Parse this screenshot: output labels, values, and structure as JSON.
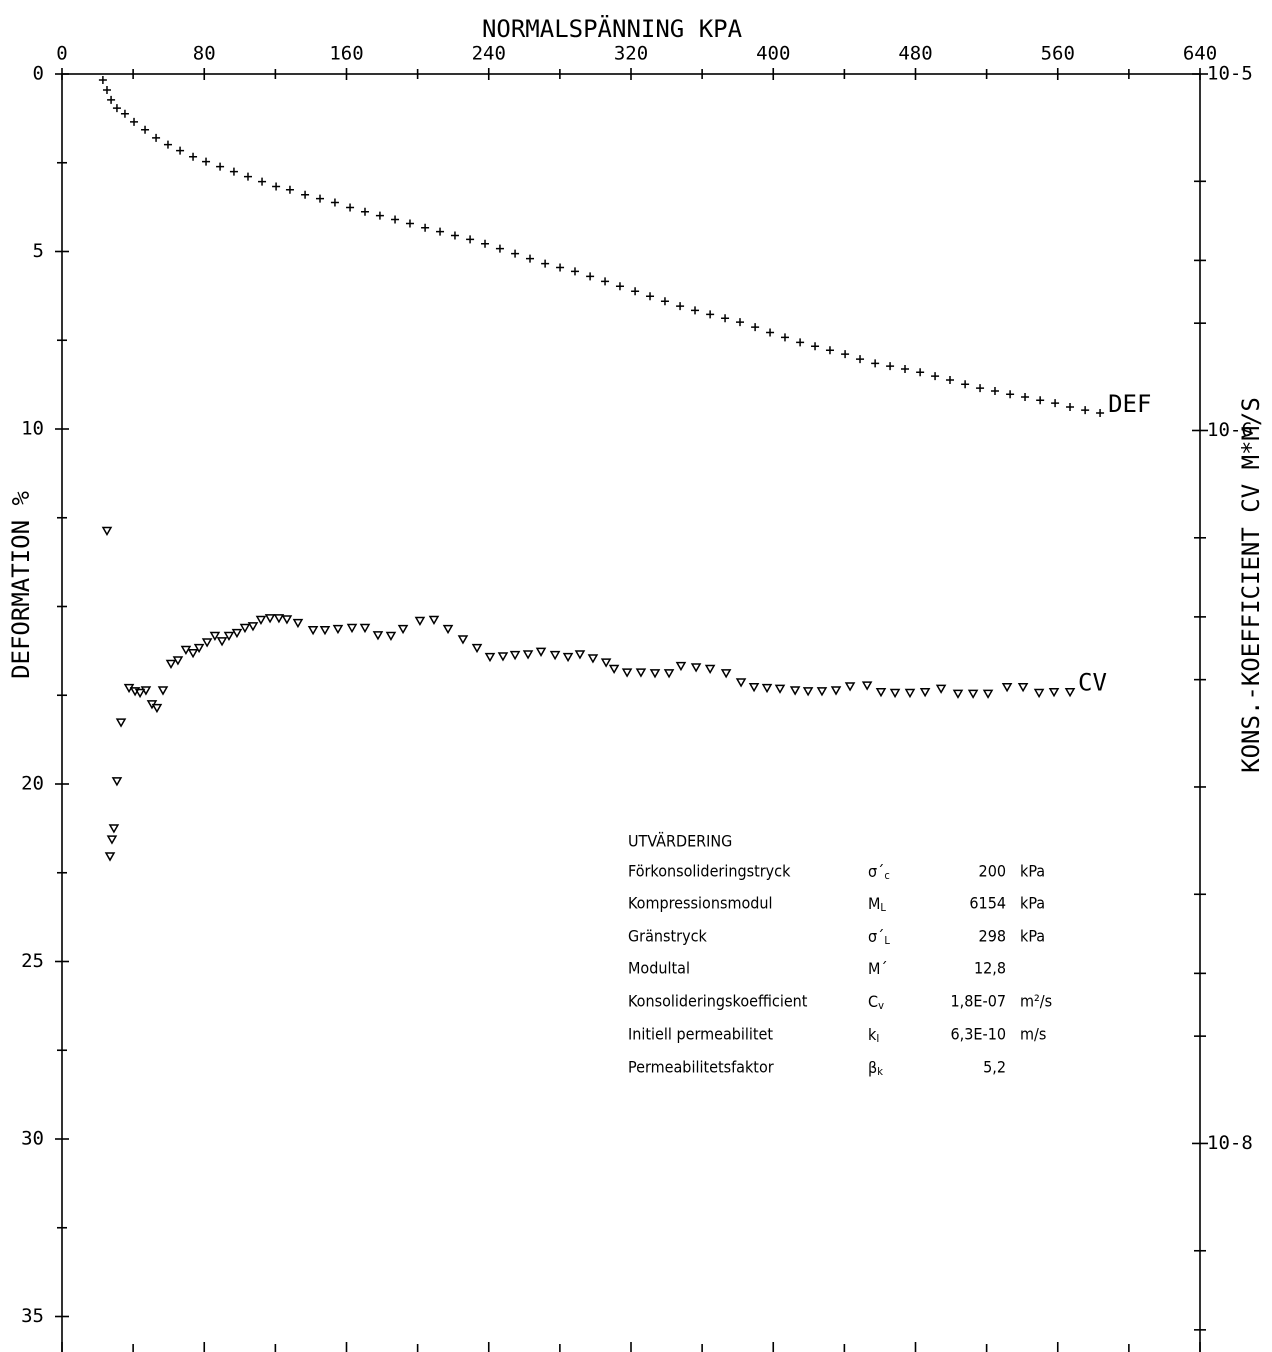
{
  "chart_data": {
    "type": "scatter",
    "title": "NORMALSPÄNNING KPA",
    "ylabel": "DEFORMATION %",
    "y2label": "KONS.-KOEFFICIENT CV  M*M/S",
    "xlim": [
      0,
      640
    ],
    "xticks": [
      0,
      80,
      160,
      240,
      320,
      400,
      480,
      560,
      640
    ],
    "xminorticks": [
      40,
      120,
      200,
      280,
      360,
      440,
      520,
      600
    ],
    "ylim": [
      0,
      36
    ],
    "yticks": [
      0,
      5,
      10,
      20,
      25,
      30,
      35
    ],
    "yminorticks": [
      2.5,
      7.5,
      12.5,
      15,
      17.5,
      22.5,
      27.5,
      32.5
    ],
    "y2scale": "log",
    "y2lim": [
      1e-05,
      2.6e-09
    ],
    "y2ticks": [
      {
        "value": 1e-05,
        "label": "10-5"
      },
      {
        "value": 1e-06,
        "label": "10-6"
      },
      {
        "value": 1e-08,
        "label": "10-8"
      }
    ],
    "y2minorticks": [
      5e-06,
      3e-06,
      2e-06,
      5e-07,
      3e-07,
      2e-07,
      1e-07,
      5e-08,
      3e-08,
      2e-08,
      5e-09,
      3e-09
    ],
    "series": [
      {
        "name": "DEF",
        "marker": "plus",
        "color": "#000000",
        "x": [
          23,
          25.3,
          27.6,
          30.9,
          35.4,
          40.5,
          46.7,
          52.9,
          59.6,
          66.4,
          73.7,
          81,
          88.9,
          96.7,
          104.6,
          112.5,
          120.4,
          128.2,
          136.7,
          145.1,
          153.5,
          162,
          170.4,
          178.8,
          187.3,
          195.7,
          204.2,
          212.6,
          221,
          229.5,
          237.9,
          246.3,
          254.8,
          263.2,
          271.7,
          280.1,
          288.5,
          297,
          305.4,
          313.8,
          322.3,
          330.7,
          339.1,
          347.6,
          356,
          364.5,
          372.9,
          381.3,
          389.8,
          398.2,
          406.6,
          415.1,
          423.5,
          431.9,
          440.4,
          448.8,
          457.3,
          465.7,
          474.1,
          482.6,
          491,
          499.4,
          507.9,
          516.3,
          524.7,
          533.2,
          541.6,
          550.1,
          558.5,
          566.9,
          575.4,
          583.8
        ],
        "values": [
          0.17,
          0.45,
          0.73,
          0.96,
          1.12,
          1.35,
          1.57,
          1.8,
          1.99,
          2.16,
          2.33,
          2.47,
          2.61,
          2.75,
          2.89,
          3.03,
          3.17,
          3.26,
          3.4,
          3.51,
          3.62,
          3.76,
          3.88,
          3.99,
          4.1,
          4.21,
          4.33,
          4.44,
          4.55,
          4.66,
          4.78,
          4.92,
          5.06,
          5.2,
          5.34,
          5.45,
          5.56,
          5.7,
          5.84,
          5.98,
          6.12,
          6.26,
          6.4,
          6.54,
          6.66,
          6.77,
          6.88,
          6.99,
          7.13,
          7.28,
          7.42,
          7.56,
          7.67,
          7.78,
          7.89,
          8.03,
          8.15,
          8.23,
          8.31,
          8.4,
          8.51,
          8.62,
          8.74,
          8.85,
          8.93,
          9.02,
          9.1,
          9.19,
          9.27,
          9.38,
          9.47,
          9.55
        ]
      },
      {
        "name": "CV",
        "marker": "triangle-down",
        "color": "#000000",
        "axis": "y2",
        "x": [
          25.3,
          27.0,
          28.1,
          29.2,
          30.9,
          33.2,
          37.7,
          41.1,
          43.9,
          47.2,
          50.6,
          53.4,
          56.8,
          61.3,
          65.2,
          69.7,
          73.7,
          77.1,
          81.6,
          86.0,
          90.0,
          93.9,
          98.4,
          102.9,
          107.4,
          111.9,
          117.0,
          122.0,
          126.5,
          132.7,
          141.2,
          147.9,
          155.2,
          163.1,
          170.4,
          177.7,
          185.0,
          191.8,
          201.3,
          209.2,
          217.1,
          225.5,
          233.4,
          240.7,
          248.0,
          254.8,
          262.1,
          269.4,
          277.3,
          284.6,
          291.3,
          298.6,
          306.0,
          310.5,
          317.8,
          325.6,
          333.5,
          341.4,
          348.1,
          356.6,
          364.5,
          373.5,
          381.9,
          389.2,
          396.5,
          403.8,
          412.3,
          419.6,
          427.4,
          435.3,
          443.2,
          452.8,
          460.6,
          468.5,
          476.9,
          485.4,
          494.4,
          503.9,
          512.4,
          520.8,
          531.5,
          540.5,
          549.5,
          557.9,
          566.9
        ],
        "values": [
          5.24e-07,
          6.4e-08,
          7.14e-08,
          7.67e-08,
          1.04e-07,
          1.52e-07,
          1.9e-07,
          1.86e-07,
          1.84e-07,
          1.87e-07,
          1.71e-07,
          1.67e-07,
          1.87e-07,
          2.22e-07,
          2.27e-07,
          2.43e-07,
          2.38e-07,
          2.46e-07,
          2.55e-07,
          2.66e-07,
          2.57e-07,
          2.66e-07,
          2.71e-07,
          2.8e-07,
          2.83e-07,
          2.95e-07,
          2.98e-07,
          2.98e-07,
          2.96e-07,
          2.89e-07,
          2.76e-07,
          2.76e-07,
          2.78e-07,
          2.8e-07,
          2.8e-07,
          2.67e-07,
          2.66e-07,
          2.78e-07,
          2.93e-07,
          2.95e-07,
          2.78e-07,
          2.6e-07,
          2.46e-07,
          2.32e-07,
          2.33e-07,
          2.35e-07,
          2.36e-07,
          2.4e-07,
          2.35e-07,
          2.32e-07,
          2.36e-07,
          2.3e-07,
          2.24e-07,
          2.15e-07,
          2.1e-07,
          2.1e-07,
          2.09e-07,
          2.09e-07,
          2.19e-07,
          2.17e-07,
          2.15e-07,
          2.09e-07,
          1.97e-07,
          1.91e-07,
          1.9e-07,
          1.89e-07,
          1.87e-07,
          1.86e-07,
          1.86e-07,
          1.87e-07,
          1.92e-07,
          1.93e-07,
          1.85e-07,
          1.84e-07,
          1.84e-07,
          1.85e-07,
          1.89e-07,
          1.83e-07,
          1.83e-07,
          1.83e-07,
          1.91e-07,
          1.91e-07,
          1.84e-07,
          1.85e-07,
          1.85e-07
        ]
      }
    ],
    "annotation": {
      "title": "UTVÄRDERING",
      "rows": [
        {
          "label": "Förkonsolideringstryck",
          "symbol": "σ´",
          "sub": "c",
          "value": "200",
          "unit": "kPa"
        },
        {
          "label": "Kompressionsmodul",
          "symbol": "M",
          "sub": "L",
          "value": "6154",
          "unit": "kPa"
        },
        {
          "label": "Gränstryck",
          "symbol": "σ´",
          "sub": "L",
          "value": "298",
          "unit": "kPa"
        },
        {
          "label": "Modultal",
          "symbol": "M´",
          "value": "12,8"
        },
        {
          "label": "Konsolideringskoefficient",
          "symbol": "C",
          "sub": "v",
          "value": "1,8E-07",
          "unit": "m²/s"
        },
        {
          "label": "Initiell permeabilitet",
          "symbol": "k",
          "sub": "I",
          "value": "6,3E-10",
          "unit": "m/s"
        },
        {
          "label": "Permeabilitetsfaktor",
          "symbol": "β",
          "sub": "k",
          "value": "5,2"
        }
      ]
    }
  }
}
